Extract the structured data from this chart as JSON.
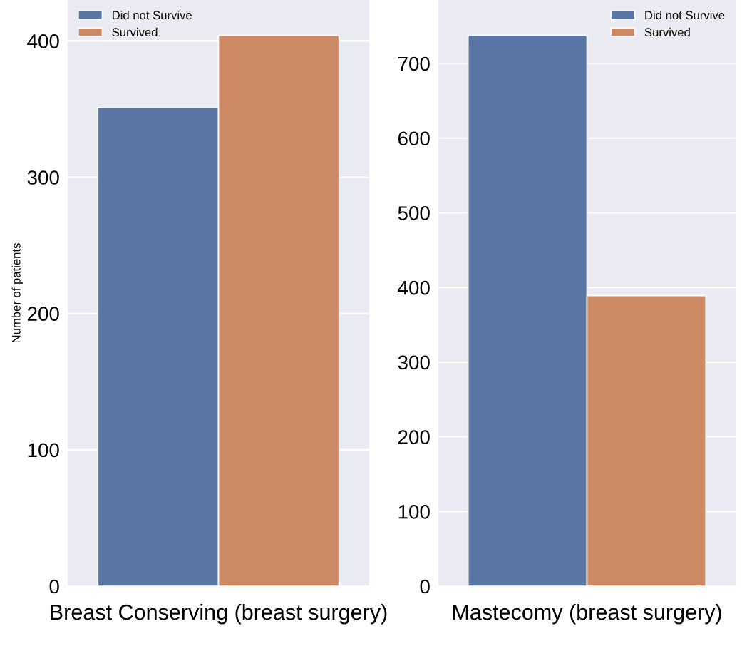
{
  "chart_data": [
    {
      "type": "bar",
      "categories": [
        "Breast Conserving (breast surgery)"
      ],
      "ylabel": "Number of patients",
      "ylim": [
        0,
        430
      ],
      "yticks": [
        0,
        100,
        200,
        300,
        400
      ],
      "grid": "y",
      "legend": "top left",
      "series": [
        {
          "name": "Did not Survive",
          "color": "#5975a4",
          "values": [
            351
          ]
        },
        {
          "name": "Survived",
          "color": "#cc8963",
          "values": [
            404
          ]
        }
      ]
    },
    {
      "type": "bar",
      "categories": [
        "Mastecomy (breast surgery)"
      ],
      "ylim": [
        0,
        785
      ],
      "yticks": [
        0,
        100,
        200,
        300,
        400,
        500,
        600,
        700
      ],
      "grid": "y",
      "legend": "top right",
      "series": [
        {
          "name": "Did not Survive",
          "color": "#5975a4",
          "values": [
            738
          ]
        },
        {
          "name": "Survived",
          "color": "#cc8963",
          "values": [
            389
          ]
        }
      ]
    }
  ]
}
